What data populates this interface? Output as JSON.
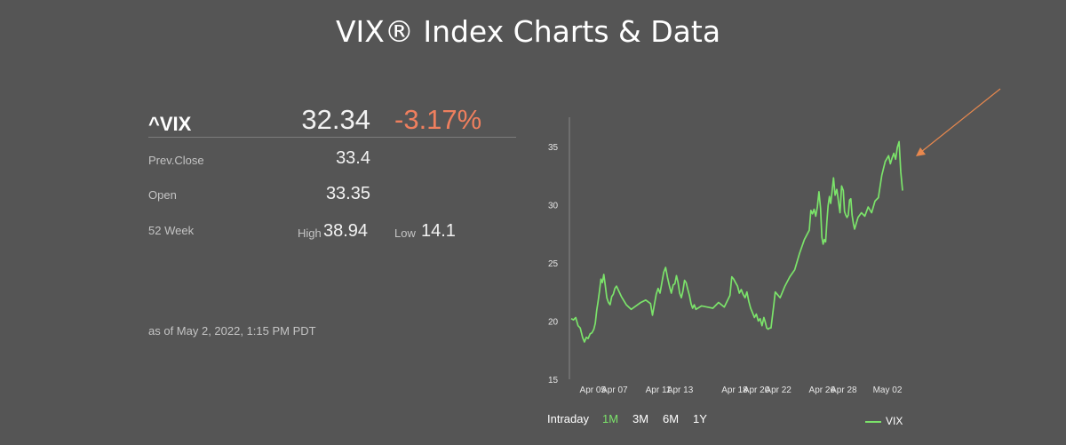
{
  "page": {
    "title": "VIX® Index Charts & Data"
  },
  "quote": {
    "symbol": "^VIX",
    "price": "32.34",
    "change_pct": "-3.17%",
    "prev_close_label": "Prev.Close",
    "prev_close": "33.4",
    "open_label": "Open",
    "open": "33.35",
    "week52_label": "52 Week",
    "high_label": "High",
    "high": "38.94",
    "low_label": "Low",
    "low": "14.1",
    "as_of": "as of May 2, 2022, 1:15 PM PDT"
  },
  "colors": {
    "background": "#555555",
    "series": "#7be36a",
    "negative": "#ef7f5e",
    "arrow": "#e8884e"
  },
  "ranges": {
    "selected": "1M",
    "items": [
      "Intraday",
      "1M",
      "3M",
      "6M",
      "1Y"
    ]
  },
  "chart_data": {
    "type": "line",
    "title": "",
    "xlabel": "",
    "ylabel": "",
    "ylim": [
      15,
      37.5
    ],
    "yticks": [
      15,
      20,
      25,
      30,
      35
    ],
    "xlim": [
      "2022-04-04",
      "2022-05-02"
    ],
    "xticks": [
      "Apr 05",
      "Apr 07",
      "Apr 11",
      "Apr 13",
      "Apr 18",
      "Apr 20",
      "Apr 22",
      "Apr 26",
      "Apr 28",
      "May 02"
    ],
    "grid": false,
    "legend": "bottom-right",
    "series": [
      {
        "name": "VIX",
        "color": "#7be36a",
        "points": [
          [
            "2022-04-04",
            20.2
          ],
          [
            "2022-04-04",
            20.1
          ],
          [
            "2022-04-04",
            20.3
          ],
          [
            "2022-04-04",
            19.6
          ],
          [
            "2022-04-04",
            19.4
          ],
          [
            "2022-04-05",
            18.6
          ],
          [
            "2022-04-05",
            18.2
          ],
          [
            "2022-04-05",
            18.6
          ],
          [
            "2022-04-05",
            18.5
          ],
          [
            "2022-04-05",
            18.9
          ],
          [
            "2022-04-05",
            19.0
          ],
          [
            "2022-04-06",
            19.3
          ],
          [
            "2022-04-06",
            19.8
          ],
          [
            "2022-04-06",
            20.9
          ],
          [
            "2022-04-06",
            21.7
          ],
          [
            "2022-04-06",
            22.6
          ],
          [
            "2022-04-06",
            23.6
          ],
          [
            "2022-04-06",
            23.3
          ],
          [
            "2022-04-06",
            24.0
          ],
          [
            "2022-04-07",
            23.1
          ],
          [
            "2022-04-07",
            22.0
          ],
          [
            "2022-04-07",
            21.6
          ],
          [
            "2022-04-07",
            21.4
          ],
          [
            "2022-04-07",
            22.1
          ],
          [
            "2022-04-07",
            22.3
          ],
          [
            "2022-04-07",
            22.8
          ],
          [
            "2022-04-08",
            23.0
          ],
          [
            "2022-04-08",
            22.1
          ],
          [
            "2022-04-08",
            21.4
          ],
          [
            "2022-04-08",
            21.0
          ],
          [
            "2022-04-08",
            21.3
          ],
          [
            "2022-04-08",
            21.6
          ],
          [
            "2022-04-08",
            21.8
          ],
          [
            "2022-04-11",
            21.5
          ],
          [
            "2022-04-11",
            20.5
          ],
          [
            "2022-04-11",
            21.4
          ],
          [
            "2022-04-11",
            22.3
          ],
          [
            "2022-04-11",
            22.8
          ],
          [
            "2022-04-11",
            22.4
          ],
          [
            "2022-04-12",
            23.3
          ],
          [
            "2022-04-12",
            24.2
          ],
          [
            "2022-04-12",
            24.6
          ],
          [
            "2022-04-12",
            23.7
          ],
          [
            "2022-04-12",
            23.0
          ],
          [
            "2022-04-12",
            22.4
          ],
          [
            "2022-04-13",
            23.1
          ],
          [
            "2022-04-13",
            23.2
          ],
          [
            "2022-04-13",
            23.9
          ],
          [
            "2022-04-13",
            23.3
          ],
          [
            "2022-04-13",
            22.4
          ],
          [
            "2022-04-13",
            22.0
          ],
          [
            "2022-04-13",
            22.6
          ],
          [
            "2022-04-14",
            23.5
          ],
          [
            "2022-04-14",
            23.3
          ],
          [
            "2022-04-14",
            22.7
          ],
          [
            "2022-04-14",
            22.2
          ],
          [
            "2022-04-14",
            21.5
          ],
          [
            "2022-04-14",
            21.1
          ],
          [
            "2022-04-14",
            21.4
          ],
          [
            "2022-04-15",
            21.0
          ],
          [
            "2022-04-15",
            21.3
          ],
          [
            "2022-04-15",
            21.2
          ],
          [
            "2022-04-15",
            21.1
          ],
          [
            "2022-04-15",
            21.6
          ],
          [
            "2022-04-15",
            21.2
          ],
          [
            "2022-04-18",
            22.2
          ],
          [
            "2022-04-18",
            23.8
          ],
          [
            "2022-04-18",
            23.6
          ],
          [
            "2022-04-18",
            23.3
          ],
          [
            "2022-04-18",
            23.0
          ],
          [
            "2022-04-18",
            22.4
          ],
          [
            "2022-04-19",
            22.7
          ],
          [
            "2022-04-19",
            22.3
          ],
          [
            "2022-04-19",
            22.0
          ],
          [
            "2022-04-19",
            22.5
          ],
          [
            "2022-04-19",
            21.7
          ],
          [
            "2022-04-19",
            21.1
          ],
          [
            "2022-04-20",
            20.7
          ],
          [
            "2022-04-20",
            20.3
          ],
          [
            "2022-04-20",
            20.6
          ],
          [
            "2022-04-20",
            20.0
          ],
          [
            "2022-04-20",
            20.2
          ],
          [
            "2022-04-20",
            19.6
          ],
          [
            "2022-04-21",
            20.3
          ],
          [
            "2022-04-21",
            19.9
          ],
          [
            "2022-04-21",
            19.4
          ],
          [
            "2022-04-21",
            19.3
          ],
          [
            "2022-04-21",
            19.4
          ],
          [
            "2022-04-21",
            19.4
          ],
          [
            "2022-04-21",
            20.4
          ],
          [
            "2022-04-21",
            21.4
          ],
          [
            "2022-04-22",
            22.5
          ],
          [
            "2022-04-22",
            22.0
          ],
          [
            "2022-04-22",
            23.0
          ],
          [
            "2022-04-22",
            23.8
          ],
          [
            "2022-04-22",
            24.4
          ],
          [
            "2022-04-22",
            25.8
          ],
          [
            "2022-04-22",
            27.0
          ],
          [
            "2022-04-25",
            27.8
          ],
          [
            "2022-04-25",
            29.5
          ],
          [
            "2022-04-25",
            29.2
          ],
          [
            "2022-04-25",
            29.6
          ],
          [
            "2022-04-25",
            29.0
          ],
          [
            "2022-04-25",
            29.8
          ],
          [
            "2022-04-25",
            31.1
          ],
          [
            "2022-04-26",
            29.7
          ],
          [
            "2022-04-26",
            27.2
          ],
          [
            "2022-04-26",
            26.6
          ],
          [
            "2022-04-26",
            27.0
          ],
          [
            "2022-04-26",
            26.8
          ],
          [
            "2022-04-26",
            28.5
          ],
          [
            "2022-04-26",
            29.9
          ],
          [
            "2022-04-26",
            30.7
          ],
          [
            "2022-04-26",
            30.1
          ],
          [
            "2022-04-27",
            31.0
          ],
          [
            "2022-04-27",
            32.3
          ],
          [
            "2022-04-27",
            30.8
          ],
          [
            "2022-04-27",
            31.3
          ],
          [
            "2022-04-27",
            30.3
          ],
          [
            "2022-04-27",
            29.3
          ],
          [
            "2022-04-27",
            31.6
          ],
          [
            "2022-04-28",
            31.2
          ],
          [
            "2022-04-28",
            29.4
          ],
          [
            "2022-04-28",
            29.1
          ],
          [
            "2022-04-28",
            28.9
          ],
          [
            "2022-04-28",
            29.1
          ],
          [
            "2022-04-28",
            30.4
          ],
          [
            "2022-04-28",
            30.5
          ],
          [
            "2022-04-28",
            29.1
          ],
          [
            "2022-04-28",
            28.4
          ],
          [
            "2022-04-29",
            27.9
          ],
          [
            "2022-04-29",
            28.9
          ],
          [
            "2022-04-29",
            29.3
          ],
          [
            "2022-04-29",
            29.0
          ],
          [
            "2022-04-29",
            29.8
          ],
          [
            "2022-04-29",
            29.3
          ],
          [
            "2022-04-29",
            30.3
          ],
          [
            "2022-04-29",
            30.6
          ],
          [
            "2022-04-29",
            32.5
          ],
          [
            "2022-04-29",
            33.7
          ],
          [
            "2022-05-02",
            34.2
          ],
          [
            "2022-05-02",
            33.5
          ],
          [
            "2022-05-02",
            34.0
          ],
          [
            "2022-05-02",
            34.4
          ],
          [
            "2022-05-02",
            33.9
          ],
          [
            "2022-05-02",
            34.9
          ],
          [
            "2022-05-02",
            35.4
          ],
          [
            "2022-05-02",
            32.8
          ],
          [
            "2022-05-02",
            31.2
          ]
        ]
      }
    ]
  }
}
